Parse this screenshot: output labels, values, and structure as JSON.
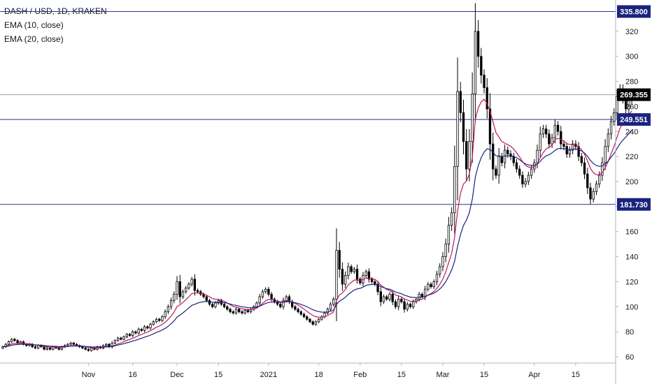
{
  "chart_data": {
    "type": "candlestick",
    "title": "DASH / USD, 1D, KRAKEN",
    "indicators": [
      {
        "name": "EMA (10, close)",
        "color": "#c2185b"
      },
      {
        "name": "EMA (20, close)",
        "color": "#1a237e"
      }
    ],
    "colors": {
      "up": "#ffffff",
      "down": "#000000",
      "wick": "#000000",
      "hline": "#283593",
      "last_line": "#9e9e9e",
      "tag_bg": "#1a237e",
      "last_tag_bg": "#000000"
    },
    "ylim": [
      55,
      345
    ],
    "y_ticks": [
      60,
      80,
      100,
      120,
      140,
      160,
      180,
      200,
      220,
      240,
      260,
      280,
      300,
      320
    ],
    "x_ticks": [
      {
        "label": "Nov",
        "day": 30
      },
      {
        "label": "16",
        "day": 45
      },
      {
        "label": "Dec",
        "day": 60
      },
      {
        "label": "15",
        "day": 74
      },
      {
        "label": "2021",
        "day": 91
      },
      {
        "label": "18",
        "day": 108
      },
      {
        "label": "Feb",
        "day": 122
      },
      {
        "label": "15",
        "day": 136
      },
      {
        "label": "Mar",
        "day": 150
      },
      {
        "label": "15",
        "day": 164
      },
      {
        "label": "Apr",
        "day": 181
      },
      {
        "label": "15",
        "day": 195
      }
    ],
    "x_range": [
      1,
      200
    ],
    "horizontal_levels": [
      {
        "value": 335.8,
        "label": "335.800"
      },
      {
        "value": 249.551,
        "label": "249.551"
      },
      {
        "value": 181.73,
        "label": "181.730"
      }
    ],
    "last_price": {
      "value": 269.355,
      "label": "269.355"
    },
    "closes": [
      68,
      70,
      72,
      74,
      73,
      71,
      72,
      70,
      69,
      70,
      68,
      67,
      69,
      68,
      66,
      67,
      66,
      68,
      67,
      66,
      68,
      69,
      70,
      71,
      70,
      69,
      68,
      67,
      66,
      65,
      67,
      66,
      68,
      67,
      69,
      70,
      68,
      71,
      73,
      75,
      74,
      76,
      78,
      77,
      80,
      79,
      82,
      81,
      84,
      83,
      86,
      88,
      90,
      89,
      92,
      96,
      100,
      105,
      110,
      120,
      108,
      112,
      115,
      118,
      122,
      113,
      112,
      110,
      108,
      105,
      102,
      100,
      103,
      105,
      102,
      100,
      98,
      96,
      95,
      98,
      96,
      95,
      97,
      96,
      98,
      100,
      103,
      108,
      112,
      114,
      110,
      106,
      104,
      102,
      100,
      105,
      108,
      104,
      100,
      98,
      96,
      94,
      92,
      90,
      88,
      86,
      88,
      90,
      92,
      95,
      98,
      102,
      106,
      145,
      130,
      118,
      125,
      132,
      128,
      130,
      122,
      119,
      125,
      128,
      122,
      120,
      118,
      112,
      104,
      108,
      106,
      110,
      104,
      100,
      106,
      104,
      98,
      102,
      100,
      104,
      106,
      110,
      108,
      114,
      118,
      116,
      120,
      126,
      132,
      140,
      150,
      165,
      175,
      212,
      272,
      255,
      232,
      210,
      232,
      270,
      320,
      300,
      285,
      275,
      258,
      230,
      210,
      205,
      220,
      215,
      225,
      222,
      220,
      215,
      210,
      205,
      198,
      200,
      205,
      210,
      215,
      225,
      238,
      242,
      238,
      230,
      235,
      245,
      240,
      230,
      228,
      222,
      225,
      230,
      228,
      220,
      215,
      206,
      195,
      186,
      192,
      198,
      205,
      215,
      228,
      238,
      248,
      255,
      268,
      274,
      266,
      258,
      265,
      269
    ],
    "ema10": [
      68,
      68.5,
      69.4,
      70.2,
      70.6,
      70.7,
      70.9,
      70.7,
      70.4,
      70.4,
      70,
      69.2,
      69.2,
      69,
      68.4,
      68.1,
      67.8,
      67.8,
      67.6,
      67.3,
      67.5,
      67.8,
      68.2,
      68.7,
      69,
      69,
      68.8,
      68.4,
      68,
      67.4,
      67.3,
      67,
      67.2,
      67.2,
      67.5,
      67.9,
      67.9,
      68.5,
      69.3,
      70.3,
      71,
      72,
      73.1,
      73.8,
      74.9,
      75.8,
      77,
      77.8,
      79,
      79.7,
      80.9,
      82.2,
      83.6,
      84.6,
      85.9,
      87.6,
      89.9,
      92.6,
      95.7,
      100.1,
      101.5,
      103.4,
      105.6,
      107.9,
      110.5,
      110.9,
      111.1,
      110.7,
      110.2,
      109.2,
      107.9,
      106.5,
      106,
      105.9,
      105.2,
      104.3,
      103,
      101.6,
      100.1,
      99.8,
      99,
      98.3,
      98,
      97.6,
      97.7,
      98,
      98.9,
      100.6,
      102.7,
      104.8,
      105.8,
      105.8,
      105.4,
      104.7,
      103.8,
      104,
      104.7,
      104.4,
      103.6,
      102.6,
      101.4,
      99.8,
      98.1,
      96.3,
      94.6,
      93,
      92.1,
      91.7,
      91.7,
      92,
      92.9,
      94.3,
      95.9,
      104.9,
      109.4,
      111,
      113.8,
      117.5,
      119.4,
      121.3,
      121.3,
      120.9,
      121.7,
      122.8,
      122.7,
      122.5,
      121.9,
      120.1,
      117.3,
      115.6,
      113.8,
      113.1,
      111.4,
      109.3,
      108.7,
      107.9,
      106,
      105.3,
      104.4,
      104.3,
      104.5,
      105.5,
      105.9,
      107.4,
      109.3,
      110.5,
      112.2,
      114.7,
      117.9,
      122,
      127.8,
      135.4,
      142.6,
      155.3,
      176.5,
      190.6,
      198.1,
      200.2,
      206,
      219.5,
      249.6,
      258.8,
      263.6,
      265.7,
      262.3,
      256.1,
      247.8,
      239.1,
      235.7,
      231.9,
      230.7,
      229.4,
      228.1,
      225.8,
      223,
      219.7,
      215.8,
      213,
      211.5,
      211.2,
      211.9,
      214.3,
      219.0,
      223.1,
      226.1,
      227.4,
      229,
      233.3,
      234.6,
      233.5,
      232.3,
      230.4,
      229.5,
      229.6,
      229.3,
      227.6,
      225.3,
      221.8,
      216.5,
      210.5,
      207.1,
      205.4,
      205.3,
      207.1,
      210.9,
      215.9,
      222.2,
      228.1,
      235.4,
      242.4,
      246.7,
      249.7,
      253.4,
      256.3
    ],
    "ema20": [
      68,
      68.2,
      68.6,
      69.2,
      69.6,
      69.8,
      70,
      70,
      69.9,
      69.9,
      69.8,
      69.5,
      69.4,
      69.3,
      69,
      68.7,
      68.5,
      68.4,
      68.3,
      68.1,
      68.1,
      68.2,
      68.3,
      68.5,
      68.6,
      68.7,
      68.6,
      68.5,
      68.3,
      68,
      67.9,
      67.8,
      67.8,
      67.8,
      67.9,
      68.1,
      68.1,
      68.4,
      68.8,
      69.4,
      69.9,
      70.5,
      71.2,
      71.8,
      72.6,
      73.2,
      74.1,
      74.8,
      75.7,
      76.4,
      77.3,
      78.3,
      79.4,
      80.3,
      81.4,
      82.8,
      84.4,
      86.4,
      88.7,
      91.7,
      93.3,
      95.1,
      97.0,
      99.0,
      101.1,
      101.9,
      102.9,
      103.6,
      104.1,
      104.2,
      104.1,
      103.7,
      103.6,
      103.7,
      103.6,
      103.3,
      102.8,
      102.1,
      101.4,
      101.1,
      100.5,
      99.9,
      99.7,
      99.3,
      99.2,
      99.3,
      99.6,
      100.4,
      101.5,
      102.7,
      103.4,
      103.7,
      103.8,
      103.7,
      103.5,
      103.6,
      104,
      103.9,
      103.6,
      103.2,
      102.6,
      101.8,
      100.9,
      99.9,
      98.8,
      97.6,
      96.7,
      96.1,
      95.7,
      95.6,
      95.8,
      96.4,
      97.3,
      101.8,
      104.5,
      105.8,
      107.6,
      109.9,
      111.6,
      113.4,
      114.2,
      114.7,
      115.7,
      117,
      117.5,
      117.8,
      117.9,
      117.4,
      116.1,
      115.3,
      114.4,
      114.0,
      112.9,
      111.7,
      111.1,
      110.4,
      109.2,
      108.5,
      107.7,
      107.4,
      107.3,
      107.6,
      107.7,
      108.3,
      109.2,
      109.9,
      110.9,
      112.3,
      114.2,
      116.6,
      120,
      124.5,
      129.3,
      136.3,
      148.3,
      157.7,
      164.9,
      169.1,
      175.1,
      186.1,
      203.4,
      212.6,
      219.0,
      223.4,
      226.2,
      225.7,
      223.3,
      220.6,
      220.5,
      219.9,
      220.4,
      220.6,
      220.6,
      220.1,
      219,
      217.5,
      215.6,
      214.1,
      213.2,
      212.9,
      213,
      213.9,
      216.2,
      218.7,
      220.5,
      221.4,
      222.9,
      224.9,
      226.3,
      226.4,
      226.4,
      225.7,
      225.4,
      225.9,
      226.1,
      225.4,
      224.4,
      222.7,
      220.1,
      216.8,
      214.4,
      212.8,
      212.1,
      212.5,
      214,
      216.3,
      219.4,
      222.5,
      226.4,
      230.2,
      233.1,
      235.6,
      238.4,
      241.1
    ]
  }
}
